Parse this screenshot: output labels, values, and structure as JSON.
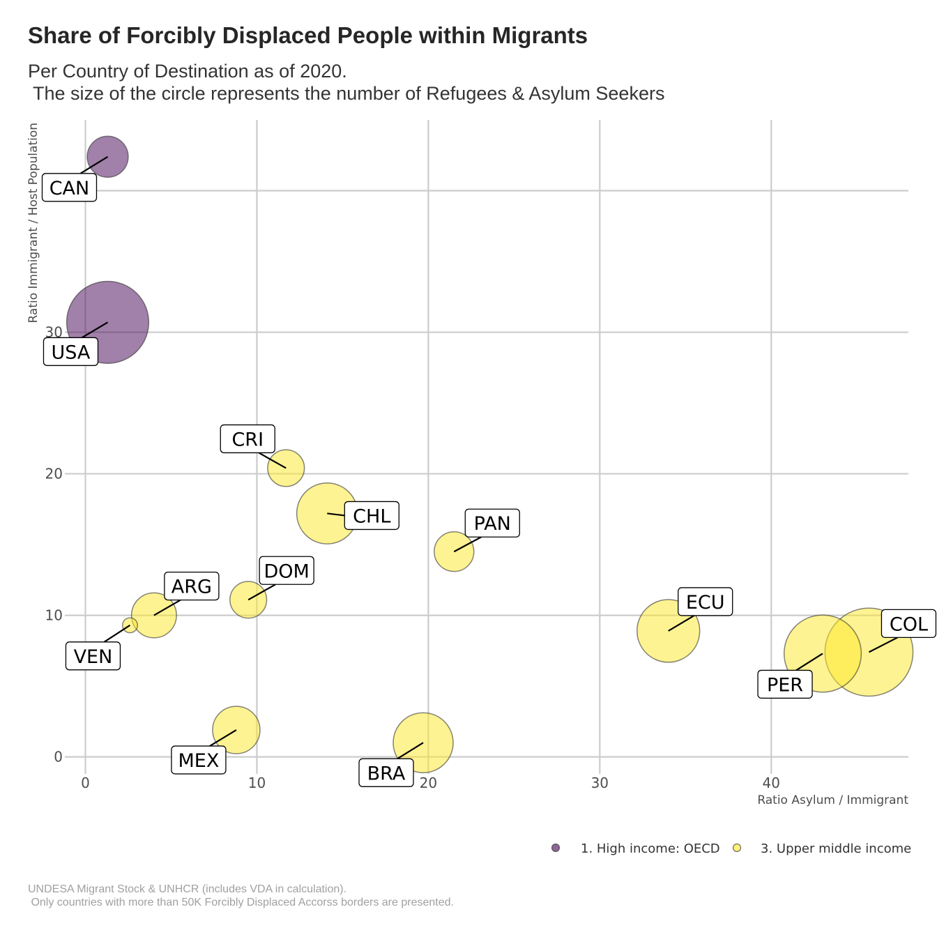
{
  "title": "Share of Forcibly Displaced People within Migrants",
  "subtitle": "Per Country of Destination as of 2020.\n The size of the circle represents the number of Refugees & Asylum Seekers",
  "caption": "UNDESA Migrant Stock & UNHCR (includes VDA in calculation).\n Only countries with more than 50K Forcibly Displaced Accorss borders are presented.",
  "chart_data": {
    "type": "scatter",
    "xlabel": "Ratio Asylum / Immigrant",
    "ylabel": "Ratio Immigrant / Host Population",
    "xlim": [
      -1.2,
      48
    ],
    "ylim": [
      -1.2,
      45
    ],
    "xticks": [
      0,
      10,
      20,
      30,
      40
    ],
    "yticks": [
      0,
      10,
      20,
      30,
      40
    ],
    "grid": true,
    "legend_position": "bottom-right",
    "colors": {
      "1. High income: OECD": "#440154",
      "3. Upper middle income": "#FDE725"
    },
    "legend": [
      "1. High income: OECD",
      "3. Upper middle income"
    ],
    "points": [
      {
        "label": "CAN",
        "x": 1.3,
        "y": 42.4,
        "size": 15,
        "group": "1. High income: OECD"
      },
      {
        "label": "USA",
        "x": 1.3,
        "y": 30.7,
        "size": 60,
        "group": "1. High income: OECD"
      },
      {
        "label": "CRI",
        "x": 11.7,
        "y": 20.4,
        "size": 12,
        "group": "3. Upper middle income"
      },
      {
        "label": "CHL",
        "x": 14.1,
        "y": 17.2,
        "size": 33,
        "group": "3. Upper middle income"
      },
      {
        "label": "PAN",
        "x": 21.5,
        "y": 14.5,
        "size": 14,
        "group": "3. Upper middle income"
      },
      {
        "label": "DOM",
        "x": 9.5,
        "y": 11.1,
        "size": 12,
        "group": "3. Upper middle income"
      },
      {
        "label": "ARG",
        "x": 4.0,
        "y": 10.0,
        "size": 18,
        "group": "3. Upper middle income"
      },
      {
        "label": "VEN",
        "x": 2.6,
        "y": 9.3,
        "size": 2,
        "group": "3. Upper middle income"
      },
      {
        "label": "ECU",
        "x": 34.0,
        "y": 8.9,
        "size": 35,
        "group": "3. Upper middle income"
      },
      {
        "label": "COL",
        "x": 45.7,
        "y": 7.4,
        "size": 69,
        "group": "3. Upper middle income"
      },
      {
        "label": "PER",
        "x": 43.0,
        "y": 7.3,
        "size": 53,
        "group": "3. Upper middle income"
      },
      {
        "label": "MEX",
        "x": 8.8,
        "y": 1.9,
        "size": 20,
        "group": "3. Upper middle income"
      },
      {
        "label": "BRA",
        "x": 19.7,
        "y": 1.0,
        "size": 32,
        "group": "3. Upper middle income"
      }
    ]
  }
}
